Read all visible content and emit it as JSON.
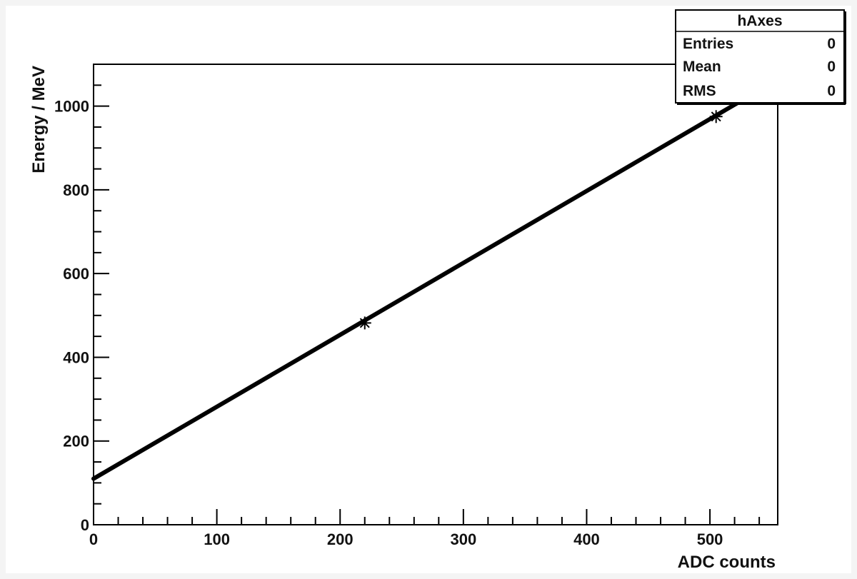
{
  "chart_data": {
    "type": "line",
    "xlabel": "ADC counts",
    "ylabel": "Energy / MeV",
    "xlim": [
      0,
      555
    ],
    "ylim": [
      0,
      1100
    ],
    "x_ticks": [
      0,
      100,
      200,
      300,
      400,
      500
    ],
    "y_ticks": [
      0,
      200,
      400,
      600,
      800,
      1000
    ],
    "x_tick_labels": [
      "0",
      "100",
      "200",
      "300",
      "400",
      "500"
    ],
    "y_tick_labels": [
      "0",
      "200",
      "400",
      "600",
      "800",
      "1000"
    ],
    "grid": false,
    "series": [
      {
        "kind": "fit-line",
        "x": [
          0,
          550
        ],
        "y": [
          110,
          1055
        ]
      },
      {
        "kind": "markers",
        "marker": "asterisk",
        "x": [
          220,
          505
        ],
        "y": [
          482,
          975
        ]
      }
    ]
  },
  "stats_box": {
    "title": "hAxes",
    "rows": [
      {
        "label": "Entries",
        "value": "0"
      },
      {
        "label": "Mean",
        "value": "0"
      },
      {
        "label": "RMS",
        "value": "0"
      }
    ]
  },
  "colors": {
    "background": "#f4f4f4",
    "canvas": "#ffffff",
    "line": "#000000",
    "text": "#111111"
  }
}
